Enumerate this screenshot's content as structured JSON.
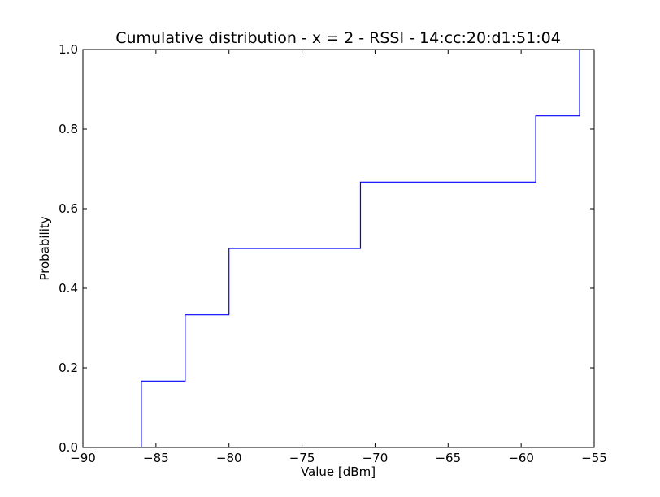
{
  "chart_data": {
    "type": "line",
    "subtype": "step-ecdf",
    "title": "Cumulative distribution - x = 2 - RSSI - 14:cc:20:d1:51:04",
    "xlabel": "Value [dBm]",
    "ylabel": "Probability",
    "xlim": [
      -90,
      -55
    ],
    "ylim": [
      0.0,
      1.0
    ],
    "xticks": [
      -90,
      -85,
      -80,
      -75,
      -70,
      -65,
      -60,
      -55
    ],
    "xtick_labels": [
      "−90",
      "−85",
      "−80",
      "−75",
      "−70",
      "−65",
      "−60",
      "−55"
    ],
    "yticks": [
      0.0,
      0.2,
      0.4,
      0.6,
      0.8,
      1.0
    ],
    "ytick_labels": [
      "0.0",
      "0.2",
      "0.4",
      "0.6",
      "0.8",
      "1.0"
    ],
    "grid": false,
    "legend": "none",
    "series": [
      {
        "color": "#0000ff",
        "x": [
          -86,
          -86,
          -83,
          -83,
          -80,
          -80,
          -71,
          -71,
          -59,
          -59,
          -56,
          -56
        ],
        "y": [
          0.0,
          0.1667,
          0.1667,
          0.3333,
          0.3333,
          0.5,
          0.5,
          0.6667,
          0.6667,
          0.8333,
          0.8333,
          1.0
        ]
      }
    ]
  }
}
